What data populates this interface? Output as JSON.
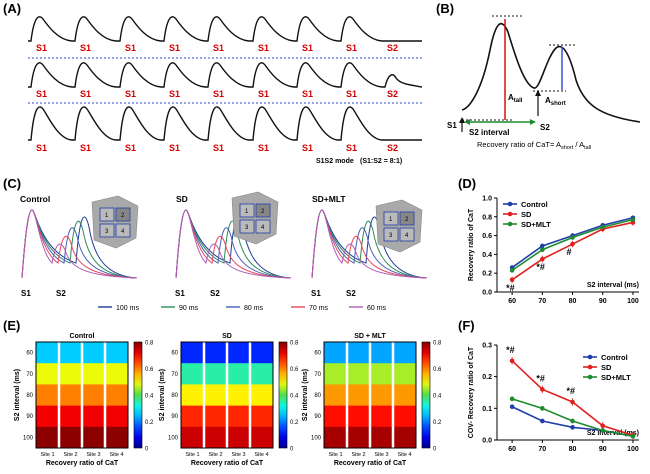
{
  "panels": {
    "A": {
      "label": "(A)",
      "rows": [
        [
          "S1",
          "S1",
          "S1",
          "S1",
          "S1",
          "S1",
          "S1",
          "S1",
          "S2"
        ],
        [
          "S1",
          "S1",
          "S1",
          "S1",
          "S1",
          "S1",
          "S1",
          "S1",
          "S2"
        ],
        [
          "S1",
          "S1",
          "S1",
          "S1",
          "S1",
          "S1",
          "S1",
          "S1",
          "S2"
        ]
      ],
      "mode_label": "S1S2 mode",
      "mode_ratio": "(S1:S2 = 8:1)"
    },
    "B": {
      "label": "(B)",
      "a_tall": "A",
      "a_tall_sub": "tall",
      "a_short": "A",
      "a_short_sub": "short",
      "s1": "S1",
      "s2": "S2",
      "interval": "S2 interval",
      "ratio_text": "Recovery ratio of CaT= A",
      "ratio_sub1": "short",
      "ratio_mid": " / A",
      "ratio_sub2": "tall"
    },
    "C": {
      "label": "(C)",
      "groups": [
        "Control",
        "SD",
        "SD+MLT"
      ],
      "s1": "S1",
      "s2": "S2",
      "sites": [
        "1",
        "2",
        "3",
        "4"
      ],
      "legend": [
        {
          "label": "100 ms",
          "color": "#1f3f93"
        },
        {
          "label": "90 ms",
          "color": "#2e8b57"
        },
        {
          "label": "80 ms",
          "color": "#4a5fb5"
        },
        {
          "label": "70 ms",
          "color": "#e8475b"
        },
        {
          "label": "60 ms",
          "color": "#b05db8"
        }
      ]
    },
    "E": {
      "label": "(E)",
      "titles": [
        "Control",
        "SD",
        "SD + MLT"
      ],
      "ylabel": "S2 interval (ms)",
      "xlabel": "Recovery ratio of CaT",
      "yticks": [
        "60",
        "70",
        "80",
        "90",
        "100"
      ],
      "xticks": [
        "Site 1",
        "Site 2",
        "Site 3",
        "Site 4"
      ],
      "cbar_ticks": [
        "0.8",
        "0.6",
        "0.4",
        "0.2",
        "0"
      ]
    }
  },
  "chart_data": [
    {
      "panel": "(D)",
      "type": "line",
      "x": [
        60,
        70,
        80,
        90,
        100
      ],
      "xlabel": "S2 interval (ms)",
      "ylabel": "Recovery ratio of CaT",
      "ylim": [
        0.0,
        1.0
      ],
      "yticks": [
        "0.0",
        "0.2",
        "0.4",
        "0.6",
        "0.8",
        "1.0"
      ],
      "series": [
        {
          "name": "Control",
          "color": "#1f3fa8",
          "values": [
            0.26,
            0.49,
            0.6,
            0.71,
            0.79
          ]
        },
        {
          "name": "SD",
          "color": "#e02020",
          "values": [
            0.13,
            0.35,
            0.51,
            0.67,
            0.74
          ]
        },
        {
          "name": "SD+MLT",
          "color": "#1e8c2e",
          "values": [
            0.23,
            0.45,
            0.58,
            0.69,
            0.77
          ]
        }
      ],
      "annotations": [
        {
          "x": 60,
          "text": "*#"
        },
        {
          "x": 70,
          "text": "*#"
        },
        {
          "x": 80,
          "text": "#"
        }
      ],
      "legend": "top-left"
    },
    {
      "panel": "(F)",
      "type": "line",
      "x": [
        60,
        70,
        80,
        90,
        100
      ],
      "xlabel": "S2 interval (ms)",
      "ylabel": "COV- Recovery ratio of CaT",
      "ylim": [
        0.0,
        0.3
      ],
      "yticks": [
        "0.0",
        "0.1",
        "0.2",
        "0.3"
      ],
      "series": [
        {
          "name": "Control",
          "color": "#1f3fa8",
          "values": [
            0.105,
            0.06,
            0.04,
            0.03,
            0.012
          ]
        },
        {
          "name": "SD",
          "color": "#e02020",
          "values": [
            0.25,
            0.16,
            0.12,
            0.045,
            0.015
          ]
        },
        {
          "name": "SD+MLT",
          "color": "#1e8c2e",
          "values": [
            0.13,
            0.1,
            0.06,
            0.03,
            0.012
          ]
        }
      ],
      "annotations": [
        {
          "x": 60,
          "text": "*#"
        },
        {
          "x": 70,
          "text": "*#"
        },
        {
          "x": 80,
          "text": "*#"
        }
      ],
      "legend": "top-right"
    },
    {
      "panel": "(E)",
      "type": "heatmap",
      "x": [
        "Site 1",
        "Site 2",
        "Site 3",
        "Site 4"
      ],
      "y": [
        60,
        70,
        80,
        90,
        100
      ],
      "clim": [
        0,
        0.8
      ],
      "groups": [
        {
          "name": "Control",
          "values": [
            [
              0.26,
              0.26,
              0.26,
              0.26
            ],
            [
              0.49,
              0.49,
              0.49,
              0.49
            ],
            [
              0.6,
              0.6,
              0.6,
              0.6
            ],
            [
              0.71,
              0.71,
              0.71,
              0.71
            ],
            [
              0.79,
              0.79,
              0.79,
              0.79
            ]
          ]
        },
        {
          "name": "SD",
          "values": [
            [
              0.13,
              0.13,
              0.13,
              0.13
            ],
            [
              0.35,
              0.35,
              0.35,
              0.35
            ],
            [
              0.51,
              0.51,
              0.51,
              0.51
            ],
            [
              0.67,
              0.67,
              0.67,
              0.67
            ],
            [
              0.74,
              0.74,
              0.74,
              0.74
            ]
          ]
        },
        {
          "name": "SD + MLT",
          "values": [
            [
              0.23,
              0.23,
              0.23,
              0.23
            ],
            [
              0.45,
              0.45,
              0.45,
              0.45
            ],
            [
              0.58,
              0.58,
              0.58,
              0.58
            ],
            [
              0.69,
              0.69,
              0.69,
              0.69
            ],
            [
              0.77,
              0.77,
              0.77,
              0.77
            ]
          ]
        }
      ]
    }
  ]
}
